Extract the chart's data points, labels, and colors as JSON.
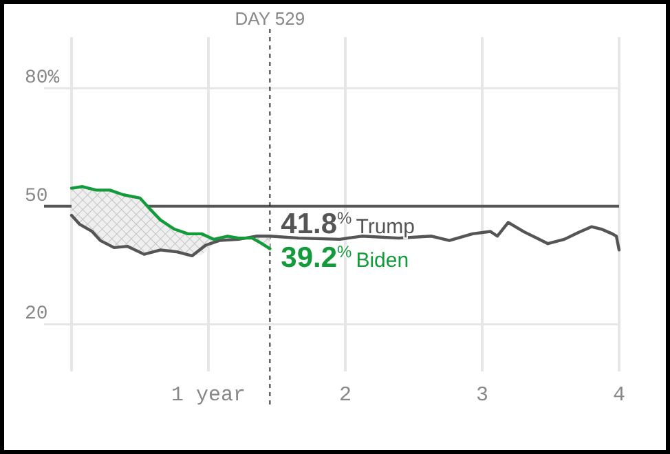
{
  "chart_data": {
    "type": "line",
    "xlim": [
      0,
      4
    ],
    "ylim": [
      8,
      93
    ],
    "xticks": [
      {
        "value": 0,
        "label": null
      },
      {
        "value": 1,
        "label": "1 year"
      },
      2,
      3,
      4
    ],
    "yticks": [
      20,
      50,
      {
        "value": 80,
        "label": "80%"
      }
    ],
    "grid": true,
    "line_style": "solid",
    "marker": "none",
    "legend": false,
    "series": [
      {
        "name": "Trump",
        "color": "#555555",
        "x": [
          0,
          0.06,
          0.15,
          0.21,
          0.31,
          0.41,
          0.53,
          0.65,
          0.77,
          0.88,
          0.98,
          1.08,
          1.22,
          1.35,
          1.449,
          1.66,
          1.96,
          2.12,
          2.39,
          2.63,
          2.76,
          2.93,
          3.06,
          3.11,
          3.19,
          3.3,
          3.4,
          3.48,
          3.6,
          3.7,
          3.8,
          3.87,
          3.95,
          3.98,
          4
        ],
        "values": [
          47.7,
          45.4,
          43.6,
          41.3,
          39.5,
          39.8,
          37.8,
          38.9,
          38.4,
          37.4,
          40.1,
          41.3,
          41.6,
          42.4,
          42.4,
          41.9,
          41.6,
          42.4,
          41.9,
          42.4,
          41.3,
          43,
          43.6,
          42.4,
          45.9,
          43.6,
          41.9,
          40.5,
          41.6,
          43.3,
          44.8,
          44.2,
          43,
          42.4,
          38.9
        ]
      },
      {
        "name": "Biden",
        "color": "#139a3b",
        "x": [
          0,
          0.08,
          0.18,
          0.28,
          0.38,
          0.5,
          0.57,
          0.65,
          0.75,
          0.85,
          0.95,
          1.04,
          1.14,
          1.22,
          1.32,
          1.39,
          1.449
        ],
        "values": [
          54.6,
          55,
          54.1,
          54.1,
          52.9,
          52.1,
          49.4,
          46.5,
          44.2,
          43,
          43,
          41.6,
          42.4,
          41.9,
          41.9,
          40.5,
          39.2
        ],
        "lower": [
          47.7,
          44.5,
          42.5,
          40.4,
          39.6,
          38.2,
          38.6,
          38.9,
          38.5,
          37.6,
          37.6,
          40.5,
          41.3,
          41.6,
          42,
          42.4,
          42.4
        ],
        "upper": [
          54.6,
          55,
          54.1,
          54.1,
          52.9,
          52.1,
          49.4,
          46.5,
          44.2,
          43,
          43,
          41.6,
          42.4,
          41.9,
          41.9,
          40.5,
          39.2
        ]
      }
    ],
    "ref_lines": [
      {
        "axis": "y",
        "value": 50,
        "label": null,
        "color": "#555555",
        "line_style": "solid"
      },
      {
        "axis": "x",
        "value": 1.449,
        "label": "DAY 529",
        "color": "#333333",
        "line_style": "dashed"
      }
    ],
    "annotations": [
      {
        "text": "41.8$^{%}$",
        "x": 1.449,
        "y": 41.8
      },
      {
        "text": "39.2$^{%}$",
        "x": 1.449,
        "y": 39.2
      }
    ]
  }
}
